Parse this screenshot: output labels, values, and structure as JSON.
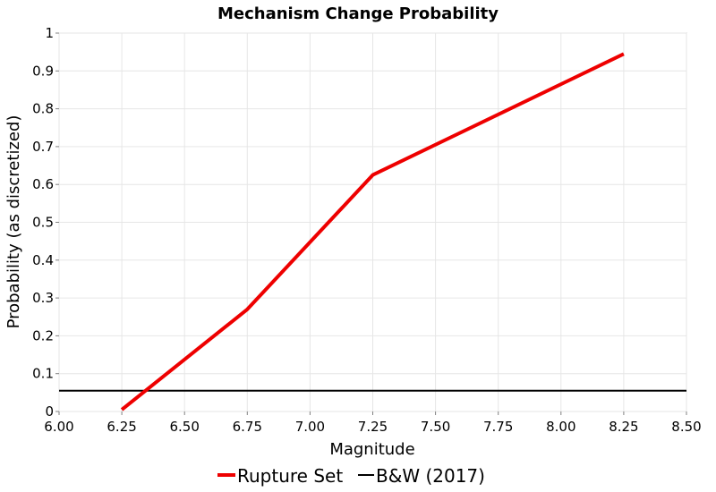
{
  "chart_data": {
    "type": "line",
    "title": "Mechanism Change Probability",
    "xlabel": "Magnitude",
    "ylabel": "Probability (as discretized)",
    "xlim": [
      6.0,
      8.5
    ],
    "ylim": [
      0,
      1
    ],
    "x_ticks": [
      "6.00",
      "6.25",
      "6.50",
      "6.75",
      "7.00",
      "7.25",
      "7.50",
      "7.75",
      "8.00",
      "8.25",
      "8.50"
    ],
    "y_ticks": [
      "0",
      "0.1",
      "0.2",
      "0.3",
      "0.4",
      "0.5",
      "0.6",
      "0.7",
      "0.8",
      "0.9",
      "1"
    ],
    "grid": true,
    "legend_position": "bottom",
    "series": [
      {
        "name": "Rupture Set",
        "color": "#ee0000",
        "x": [
          6.25,
          6.75,
          7.25,
          8.25
        ],
        "y": [
          0.005,
          0.27,
          0.625,
          0.945
        ]
      },
      {
        "name": "B&W (2017)",
        "color": "#000000",
        "x": [
          6.0,
          8.5
        ],
        "y": [
          0.055,
          0.055
        ]
      }
    ]
  }
}
